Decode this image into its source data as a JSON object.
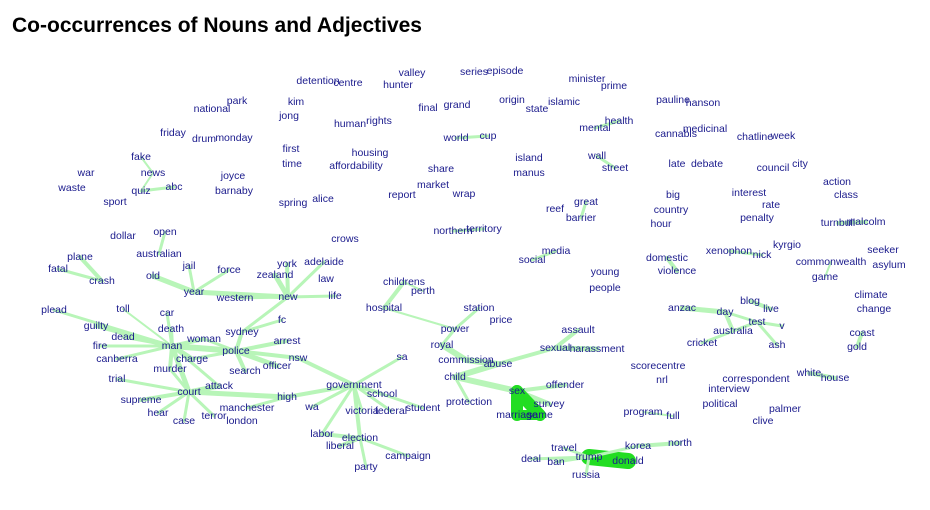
{
  "title": "Co-occurrences of Nouns and Adjectives",
  "colors": {
    "edge": "#b8f5b8",
    "edge_strong": "#22dd22",
    "label": "#1a1a8c"
  },
  "nodes": [
    "detention",
    "centre",
    "valley",
    "hunter",
    "series",
    "episode",
    "minister",
    "prime",
    "park",
    "national",
    "kim",
    "jong",
    "final",
    "grand",
    "origin",
    "state",
    "islamic",
    "pauline",
    "hanson",
    "human",
    "rights",
    "mental",
    "health",
    "friday",
    "drum",
    "monday",
    "world",
    "cup",
    "cannabis",
    "medicinal",
    "chatline",
    "week",
    "first",
    "time",
    "housing",
    "affordability",
    "island",
    "manus",
    "wall",
    "street",
    "late",
    "debate",
    "council",
    "city",
    "fake",
    "news",
    "abc",
    "war",
    "waste",
    "quiz",
    "joyce",
    "barnaby",
    "share",
    "market",
    "wrap",
    "report",
    "action",
    "class",
    "sport",
    "spring",
    "alice",
    "big",
    "country",
    "hour",
    "interest",
    "rate",
    "penalty",
    "reef",
    "great",
    "barrier",
    "turnbull",
    "malcolm",
    "northern",
    "territory",
    "dollar",
    "open",
    "crows",
    "kyrgio",
    "seeker",
    "asylum",
    "plane",
    "australian",
    "jail",
    "force",
    "york",
    "zealand",
    "adelaide",
    "law",
    "media",
    "social",
    "domestic",
    "violence",
    "xenophon",
    "nick",
    "commonwealth",
    "game",
    "fatal",
    "crash",
    "old",
    "year",
    "western",
    "new",
    "life",
    "childrens",
    "perth",
    "young",
    "people",
    "climate",
    "change",
    "plead",
    "toll",
    "car",
    "hospital",
    "station",
    "price",
    "anzac",
    "day",
    "blog",
    "live",
    "guilty",
    "death",
    "sydney",
    "fc",
    "power",
    "assault",
    "test",
    "australia",
    "v",
    "coast",
    "gold",
    "dead",
    "fire",
    "man",
    "woman",
    "police",
    "arrest",
    "royal",
    "sexual",
    "harassment",
    "cricket",
    "ash",
    "canberra",
    "charge",
    "nsw",
    "commission",
    "abuse",
    "murder",
    "search",
    "officer",
    "sa",
    "scorecentre",
    "nrl",
    "white",
    "house",
    "trial",
    "attack",
    "court",
    "government",
    "child",
    "sex",
    "offender",
    "correspondent",
    "interview",
    "supreme",
    "high",
    "school",
    "political",
    "manchester",
    "wa",
    "victoria",
    "federal",
    "student",
    "protection",
    "survey",
    "marriage",
    "same",
    "program",
    "full",
    "palmer",
    "clive",
    "hear",
    "case",
    "terror",
    "london",
    "labor",
    "election",
    "liberal",
    "korea",
    "north",
    "travel",
    "trump",
    "donald",
    "deal",
    "ban",
    "campaign",
    "party",
    "russia"
  ]
}
